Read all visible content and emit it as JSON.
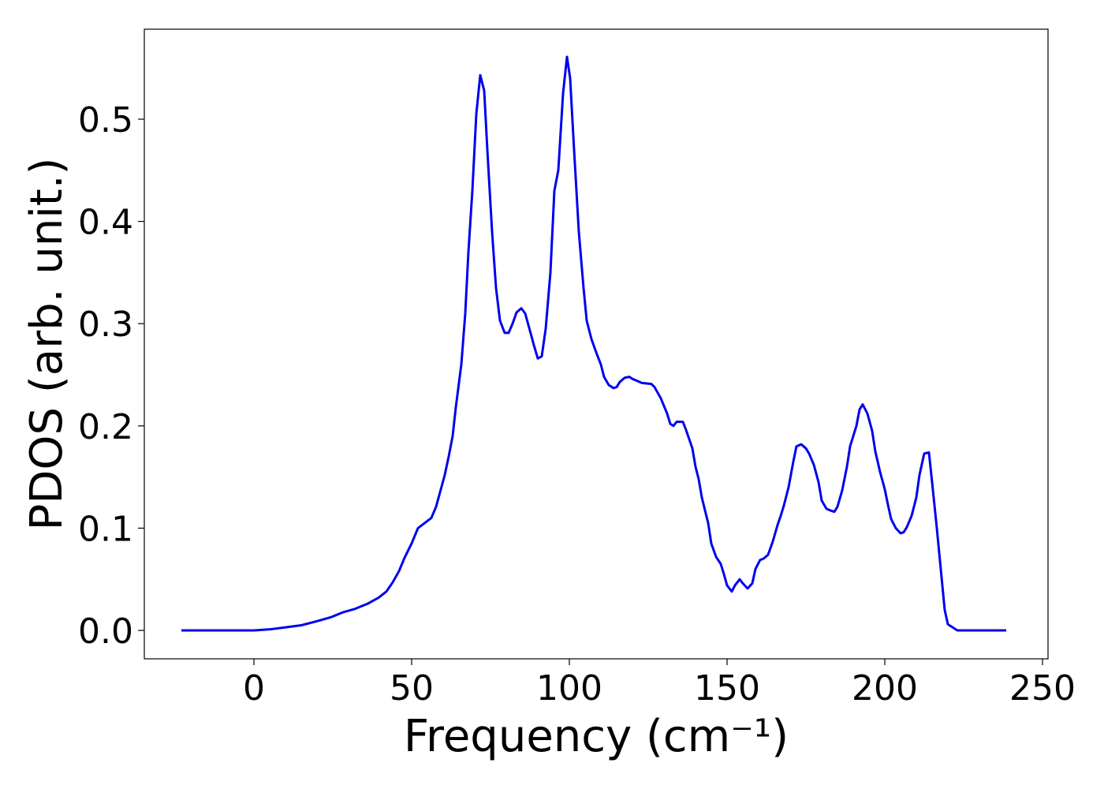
{
  "chart_data": {
    "type": "line",
    "x_label": "Frequency (cm⁻¹)",
    "y_label": "PDOS (arb. unit.)",
    "xlim": [
      -34.75,
      251.75
    ],
    "ylim": [
      -0.0278,
      0.588
    ],
    "xticks": [
      0,
      50,
      100,
      150,
      200,
      250
    ],
    "yticks": [
      {
        "value": 0,
        "label": "0.0"
      },
      0.1,
      0.2,
      0.3,
      0.4,
      0.5
    ],
    "grid": false,
    "series": [
      {
        "name": "PDOS",
        "color": "#0000ee",
        "x": [
          -23,
          0,
          5,
          10,
          15,
          20,
          24.5,
          28.5,
          32,
          36,
          39.5,
          42,
          44,
          46,
          47.75,
          50,
          52,
          56.25,
          57.75,
          59,
          60.5,
          61.75,
          63,
          64,
          65.75,
          67,
          68,
          69.25,
          70.5,
          71.75,
          73,
          74,
          75.5,
          76.75,
          78,
          79.5,
          80.75,
          82,
          83.25,
          84.75,
          86,
          87.25,
          88.75,
          90,
          91.25,
          92.5,
          94,
          95.25,
          96.5,
          98,
          99.25,
          100.25,
          101.5,
          103,
          104.5,
          105.5,
          107,
          108.5,
          110,
          111,
          112.5,
          114,
          115,
          116,
          117.5,
          119,
          120,
          121.5,
          123,
          126,
          127,
          129,
          131,
          132,
          133,
          134,
          136,
          137,
          139,
          140,
          141,
          142,
          144,
          145,
          146.5,
          148,
          149,
          150,
          151.5,
          152.5,
          154,
          155,
          156.5,
          158,
          159,
          160.5,
          161.5,
          163,
          164.5,
          166,
          167,
          168,
          169.5,
          171,
          172,
          173.5,
          175,
          176,
          177.5,
          179,
          180,
          181.5,
          183,
          184,
          185,
          186.5,
          188,
          189,
          191,
          192,
          193,
          194.5,
          196,
          197,
          198.5,
          200,
          201,
          202,
          203.5,
          205,
          206,
          207,
          208.5,
          210,
          211,
          212.5,
          214,
          215,
          216.5,
          218,
          219,
          220,
          222,
          223,
          238.5
        ],
        "values": [
          0,
          0,
          0.001,
          0.003,
          0.005,
          0.009,
          0.013,
          0.018,
          0.021,
          0.026,
          0.032,
          0.038,
          0.047,
          0.058,
          0.071,
          0.085,
          0.1,
          0.11,
          0.121,
          0.135,
          0.152,
          0.17,
          0.19,
          0.218,
          0.26,
          0.31,
          0.37,
          0.43,
          0.505,
          0.543,
          0.528,
          0.47,
          0.39,
          0.335,
          0.303,
          0.291,
          0.291,
          0.3,
          0.311,
          0.315,
          0.31,
          0.296,
          0.279,
          0.266,
          0.268,
          0.295,
          0.35,
          0.43,
          0.45,
          0.525,
          0.561,
          0.54,
          0.47,
          0.39,
          0.335,
          0.303,
          0.285,
          0.272,
          0.26,
          0.248,
          0.24,
          0.237,
          0.238,
          0.243,
          0.247,
          0.248,
          0.246,
          0.244,
          0.242,
          0.241,
          0.238,
          0.227,
          0.212,
          0.202,
          0.2,
          0.204,
          0.204,
          0.196,
          0.178,
          0.16,
          0.148,
          0.13,
          0.105,
          0.085,
          0.072,
          0.065,
          0.055,
          0.044,
          0.038,
          0.044,
          0.05,
          0.046,
          0.041,
          0.046,
          0.06,
          0.069,
          0.07,
          0.074,
          0.087,
          0.103,
          0.112,
          0.122,
          0.14,
          0.165,
          0.18,
          0.182,
          0.178,
          0.173,
          0.162,
          0.145,
          0.127,
          0.119,
          0.117,
          0.116,
          0.121,
          0.137,
          0.16,
          0.18,
          0.2,
          0.216,
          0.221,
          0.212,
          0.195,
          0.175,
          0.155,
          0.138,
          0.123,
          0.109,
          0.1,
          0.095,
          0.096,
          0.101,
          0.112,
          0.13,
          0.152,
          0.173,
          0.174,
          0.145,
          0.1,
          0.052,
          0.02,
          0.006,
          0.002,
          0,
          0
        ]
      }
    ]
  }
}
